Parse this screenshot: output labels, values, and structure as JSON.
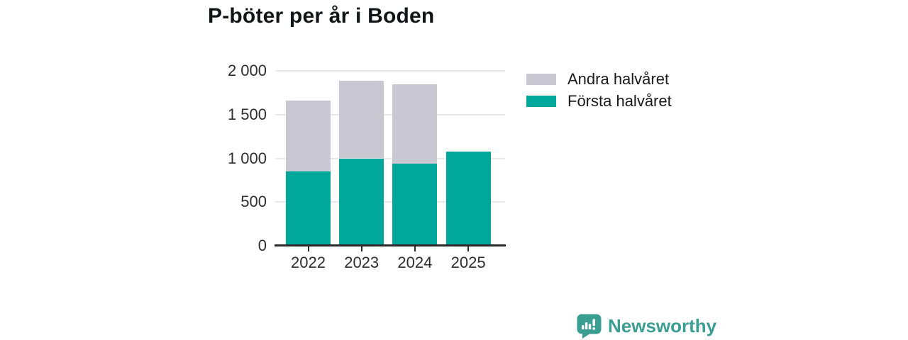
{
  "chart_data": {
    "type": "bar",
    "stacked": true,
    "title": "P-böter per år i Boden",
    "categories": [
      "2022",
      "2023",
      "2024",
      "2025"
    ],
    "series": [
      {
        "name": "Första halvåret",
        "color": "#00a79b",
        "values": [
          850,
          1000,
          940,
          1075
        ]
      },
      {
        "name": "Andra halvåret",
        "color": "#c9c7d2",
        "values": [
          810,
          885,
          905,
          0
        ]
      }
    ],
    "xlabel": "",
    "ylabel": "",
    "ylim": [
      0,
      2000
    ],
    "yticks": [
      0,
      500,
      1000,
      1500,
      2000
    ],
    "ytick_labels": [
      "0",
      "500",
      "1 000",
      "1 500",
      "2 000"
    ],
    "grid": "horizontal",
    "legend_position": "right-of-plot-top"
  },
  "legend": {
    "items": [
      {
        "label": "Andra halvåret",
        "color": "#c9c7d2"
      },
      {
        "label": "Första halvåret",
        "color": "#00a79b"
      }
    ]
  },
  "branding": {
    "label": "Newsworthy",
    "color": "#3b9e92",
    "icon": "speech-bubble-bar-chart"
  },
  "colors": {
    "first_half_teal": "#00a79b",
    "second_half_gray": "#c9c7d2",
    "axis": "#2b2b2b",
    "gridline": "#e8e8e8",
    "title_text": "#121417"
  }
}
